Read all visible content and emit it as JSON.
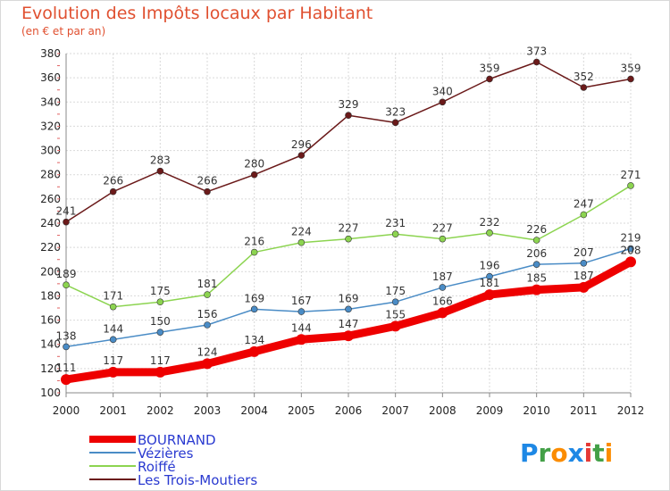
{
  "chart_data": {
    "type": "line",
    "title": "Evolution des Impôts locaux par Habitant",
    "subtitle": "(en € et par an)",
    "x": [
      "2000",
      "2001",
      "2002",
      "2003",
      "2004",
      "2005",
      "2006",
      "2007",
      "2008",
      "2009",
      "2010",
      "2011",
      "2012"
    ],
    "ylim": [
      100,
      380
    ],
    "yticks": [
      100,
      120,
      140,
      160,
      180,
      200,
      220,
      240,
      260,
      280,
      300,
      320,
      340,
      360,
      380
    ],
    "grid": true,
    "legend_position": "bottom-left",
    "series": [
      {
        "name": "BOURNAND",
        "color": "#ee0000",
        "values": [
          111,
          117,
          117,
          124,
          134,
          144,
          147,
          155,
          166,
          181,
          185,
          187,
          208
        ]
      },
      {
        "name": "Vézières",
        "color": "#4a8cc6",
        "values": [
          138,
          144,
          150,
          156,
          169,
          167,
          169,
          175,
          187,
          196,
          206,
          207,
          219
        ]
      },
      {
        "name": "Roiffé",
        "color": "#8cd450",
        "values": [
          189,
          171,
          175,
          181,
          216,
          224,
          227,
          231,
          227,
          232,
          226,
          247,
          271
        ]
      },
      {
        "name": "Les Trois-Moutiers",
        "color": "#6b1a1a",
        "values": [
          241,
          266,
          283,
          266,
          280,
          296,
          329,
          323,
          340,
          359,
          373,
          352,
          359
        ]
      }
    ]
  },
  "logo": {
    "letters": [
      "P",
      "r",
      "o",
      "x",
      "i",
      "t",
      "i"
    ],
    "colors": [
      "#1e88e5",
      "#43a047",
      "#fb8c00",
      "#1e88e5",
      "#e53935",
      "#43a047",
      "#fb8c00"
    ]
  }
}
